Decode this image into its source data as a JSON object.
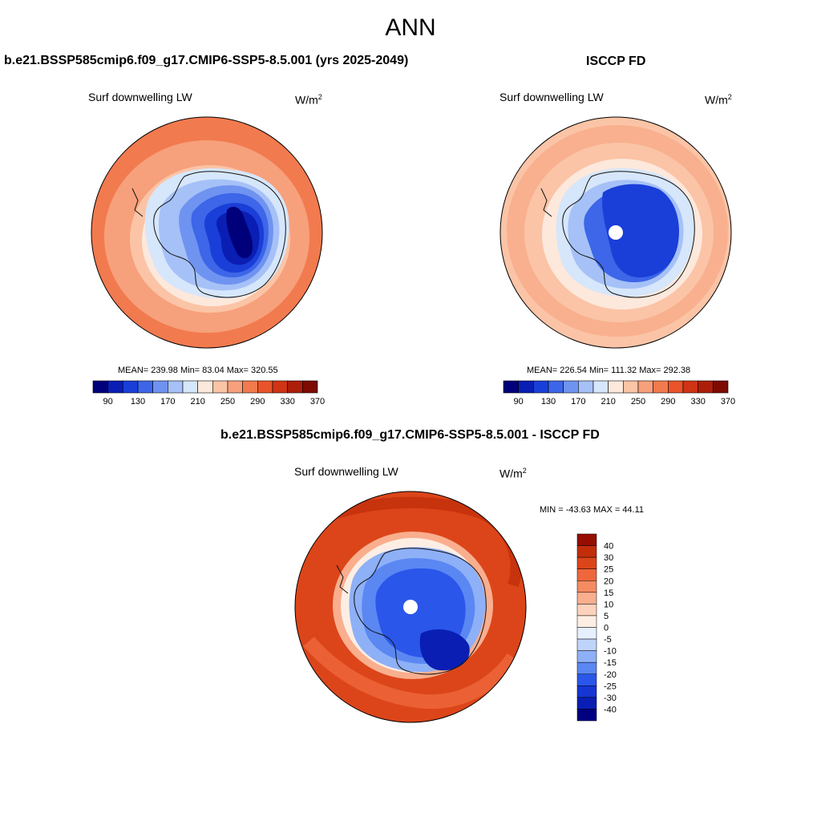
{
  "main_title": "ANN",
  "colors": {
    "levels": [
      "#00007a",
      "#0a1eb4",
      "#1a3fd8",
      "#3d66e8",
      "#6f93f0",
      "#a6c1f7",
      "#d6e6fb",
      "#fde8dc",
      "#fbc4a6",
      "#f7a07c",
      "#f27a4f",
      "#e9542a",
      "#cf3414",
      "#ab1e0a",
      "#7d0b02"
    ],
    "diff": [
      "#000080",
      "#0a1eb4",
      "#1536d2",
      "#2a56ea",
      "#5b87f3",
      "#8eb0f7",
      "#bfd4fb",
      "#e6effd",
      "#fdeee4",
      "#fcd2bb",
      "#f9ae8e",
      "#f58b63",
      "#ef673c",
      "#dc4519",
      "#c22e0a",
      "#960e00"
    ]
  },
  "panels": [
    {
      "title": "b.e21.BSSP585cmip6.f09_g17.CMIP6-SSP5-8.5.001 (yrs 2025-2049)",
      "variable": "Surf downwelling LW",
      "units": "W/m",
      "units_exp": "2",
      "stats_text": "MEAN= 239.98  Min=  83.04  Max= 320.55",
      "colorbar_ticks": [
        "90",
        "130",
        "170",
        "210",
        "250",
        "290",
        "330",
        "370"
      ]
    },
    {
      "title": "ISCCP FD",
      "variable": "Surf downwelling LW",
      "units": "W/m",
      "units_exp": "2",
      "stats_text": "MEAN= 226.54  Min= 111.32  Max= 292.38",
      "colorbar_ticks": [
        "90",
        "130",
        "170",
        "210",
        "250",
        "290",
        "330",
        "370"
      ]
    },
    {
      "title": "b.e21.BSSP585cmip6.f09_g17.CMIP6-SSP5-8.5.001 - ISCCP FD",
      "variable": "Surf downwelling LW",
      "units": "W/m",
      "units_exp": "2",
      "stats_text": "MIN = -43.63 MAX =  44.11",
      "colorbar_ticks": [
        "40",
        "30",
        "25",
        "20",
        "15",
        "10",
        "5",
        "0",
        "-5",
        "-10",
        "-15",
        "-20",
        "-25",
        "-30",
        "-40"
      ]
    }
  ]
}
